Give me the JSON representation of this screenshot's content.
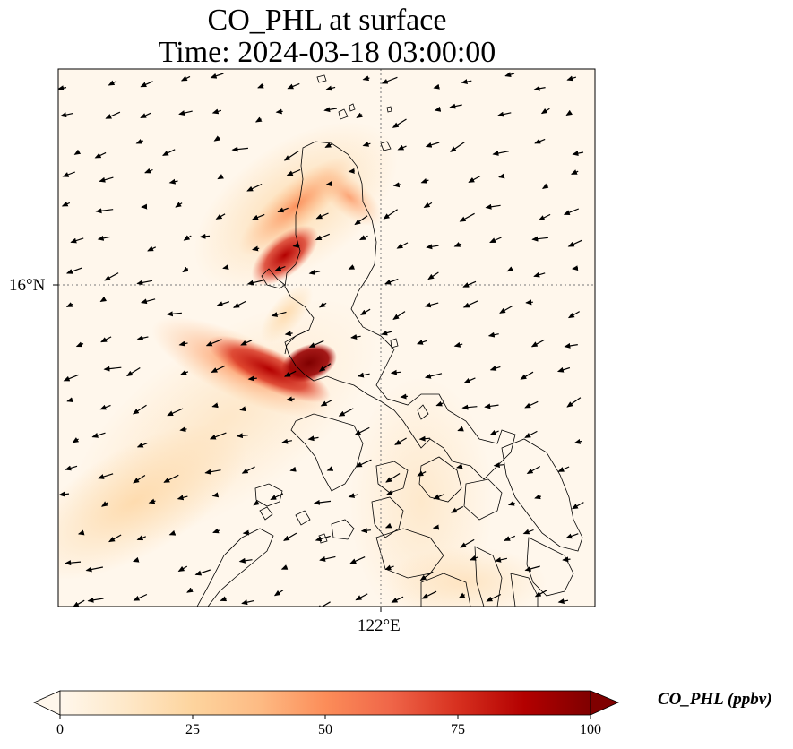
{
  "title": {
    "line1": "CO_PHL at surface",
    "line2": "Time: 2024-03-18 03:00:00"
  },
  "map": {
    "variable": "CO_PHL",
    "projection": "lat-lon",
    "gridlines": {
      "latitude_label": "16°N",
      "longitude_label": "122°E",
      "style": "dotted gray"
    },
    "wind_vectors": "black arrows, predominantly from the northeast",
    "coastlines": "thin black",
    "plume": "high concentrations (dark red) over Manila Bay / central Luzon region, decreasing seaward toward the southwest"
  },
  "colorbar": {
    "label": "CO_PHL (ppbv)",
    "colormap": "OrRd",
    "ticks": [
      "0",
      "25",
      "50",
      "75",
      "100"
    ],
    "min": 0,
    "max": 100,
    "extend": "both",
    "colors": [
      "#fff7ec",
      "#fee8c8",
      "#fdd49e",
      "#fdbb84",
      "#fc8d59",
      "#ef6548",
      "#d7301f",
      "#b30000",
      "#7f0000"
    ]
  }
}
